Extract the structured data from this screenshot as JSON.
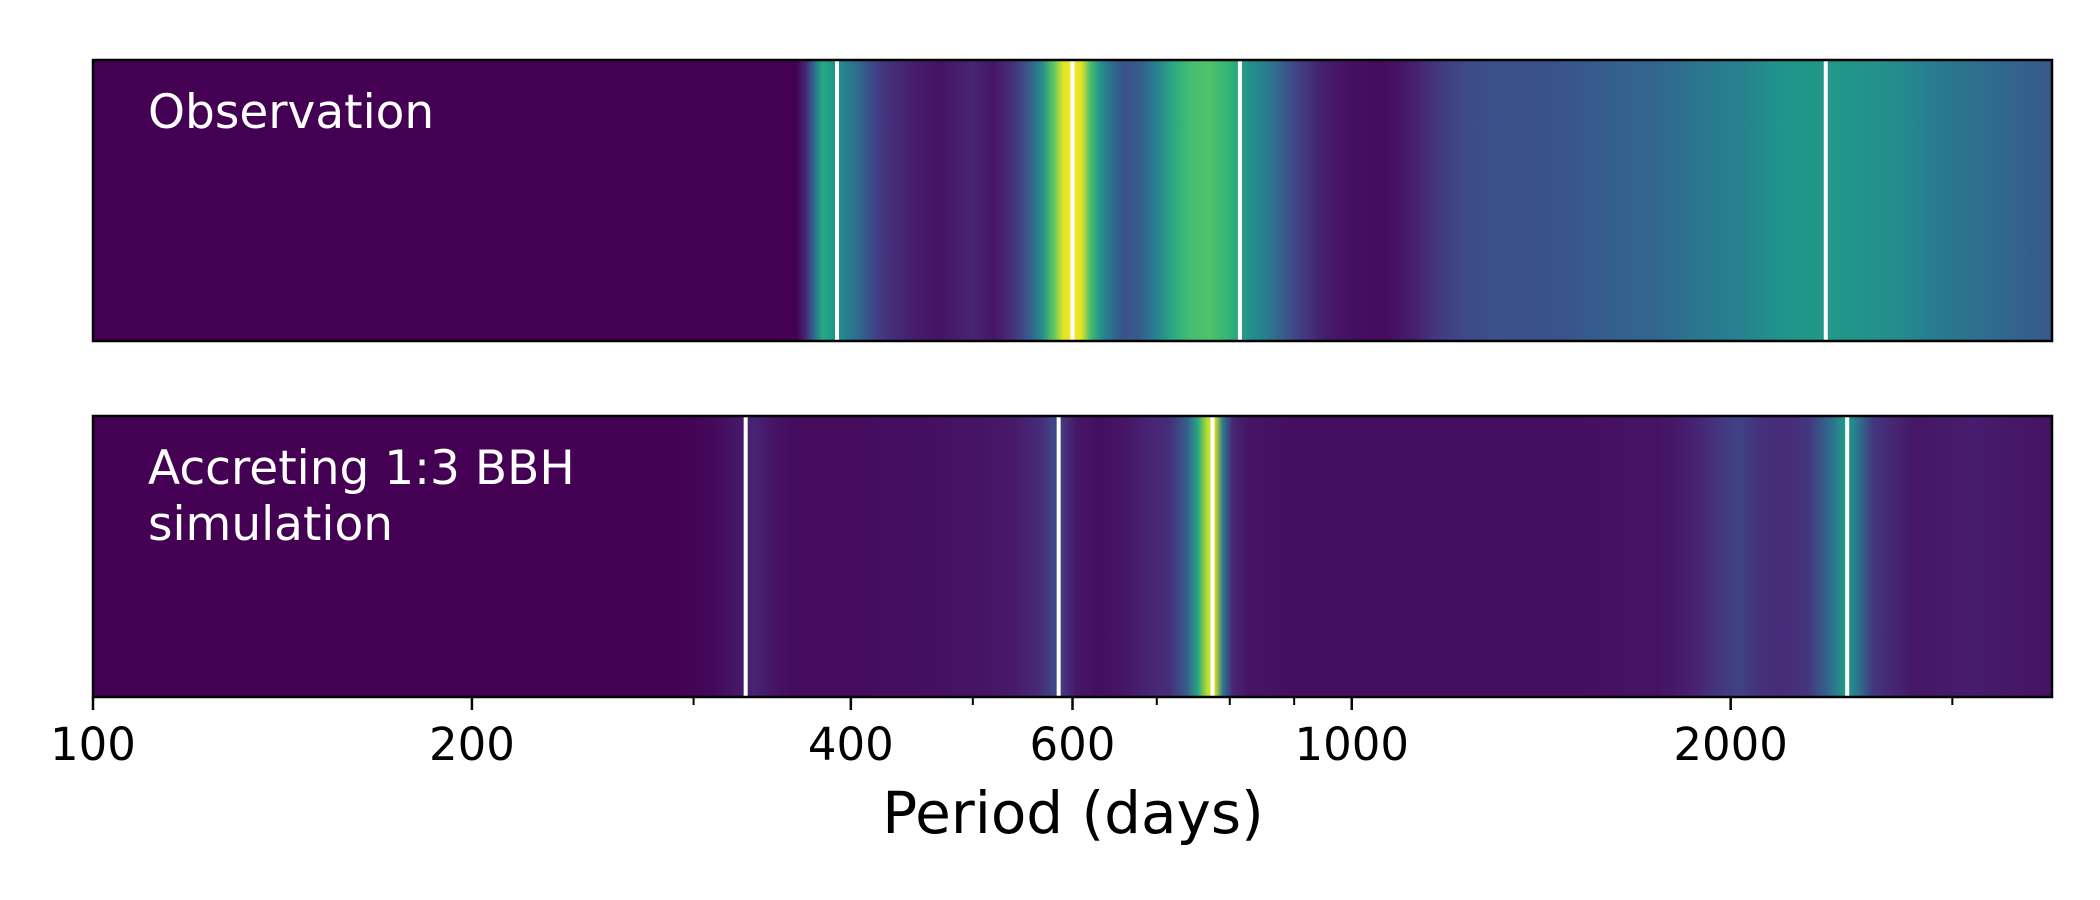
{
  "chart_data": {
    "type": "heatmap",
    "xlabel": "Period (days)",
    "xscale": "log",
    "xlim": [
      100,
      3600
    ],
    "grid": false,
    "colormap": "viridis",
    "colors": {
      "viridis": [
        "#440154",
        "#482878",
        "#3e4989",
        "#31688e",
        "#26828e",
        "#1f9e89",
        "#35b779",
        "#6ece58",
        "#b5de2b",
        "#fde725"
      ],
      "marker_line": "#ffffff",
      "frame": "#000000",
      "background": "#ffffff"
    },
    "major_ticks": [
      {
        "value": 100,
        "label": "100"
      },
      {
        "value": 200,
        "label": "200"
      },
      {
        "value": 400,
        "label": "400"
      },
      {
        "value": 600,
        "label": "600"
      },
      {
        "value": 1000,
        "label": "1000"
      },
      {
        "value": 2000,
        "label": "2000"
      }
    ],
    "minor_ticks": [
      300,
      500,
      700,
      800,
      900,
      3000
    ],
    "panels": [
      {
        "label": "Observation",
        "markers": [
          390,
          600,
          815,
          2380
        ],
        "intensity": [
          [
            100,
            0.0
          ],
          [
            362,
            0.0
          ],
          [
            368,
            0.1
          ],
          [
            372,
            0.25
          ],
          [
            376,
            0.45
          ],
          [
            380,
            0.6
          ],
          [
            385,
            0.55
          ],
          [
            395,
            0.45
          ],
          [
            405,
            0.35
          ],
          [
            418,
            0.2
          ],
          [
            432,
            0.12
          ],
          [
            450,
            0.08
          ],
          [
            470,
            0.05
          ],
          [
            500,
            0.1
          ],
          [
            520,
            0.06
          ],
          [
            540,
            0.15
          ],
          [
            555,
            0.3
          ],
          [
            568,
            0.5
          ],
          [
            580,
            0.75
          ],
          [
            590,
            0.95
          ],
          [
            600,
            1.0
          ],
          [
            610,
            0.95
          ],
          [
            620,
            0.7
          ],
          [
            632,
            0.5
          ],
          [
            645,
            0.35
          ],
          [
            660,
            0.25
          ],
          [
            680,
            0.3
          ],
          [
            700,
            0.45
          ],
          [
            720,
            0.6
          ],
          [
            745,
            0.7
          ],
          [
            770,
            0.72
          ],
          [
            800,
            0.65
          ],
          [
            830,
            0.5
          ],
          [
            860,
            0.4
          ],
          [
            900,
            0.22
          ],
          [
            950,
            0.08
          ],
          [
            1000,
            0.04
          ],
          [
            1060,
            0.03
          ],
          [
            1110,
            0.07
          ],
          [
            1160,
            0.15
          ],
          [
            1220,
            0.22
          ],
          [
            1300,
            0.25
          ],
          [
            1400,
            0.25
          ],
          [
            1500,
            0.27
          ],
          [
            1600,
            0.3
          ],
          [
            1750,
            0.33
          ],
          [
            1900,
            0.4
          ],
          [
            2050,
            0.45
          ],
          [
            2200,
            0.52
          ],
          [
            2400,
            0.53
          ],
          [
            2650,
            0.5
          ],
          [
            2900,
            0.42
          ],
          [
            3200,
            0.35
          ],
          [
            3600,
            0.28
          ]
        ]
      },
      {
        "label": "Accreting 1:3 BBH simulation",
        "label_lines": [
          "Accreting 1:3 BBH",
          "simulation"
        ],
        "markers": [
          330,
          585,
          775,
          2475
        ],
        "intensity": [
          [
            100,
            0.0
          ],
          [
            290,
            0.0
          ],
          [
            310,
            0.02
          ],
          [
            325,
            0.06
          ],
          [
            335,
            0.1
          ],
          [
            345,
            0.06
          ],
          [
            360,
            0.03
          ],
          [
            400,
            0.03
          ],
          [
            450,
            0.04
          ],
          [
            500,
            0.05
          ],
          [
            540,
            0.07
          ],
          [
            565,
            0.12
          ],
          [
            580,
            0.22
          ],
          [
            590,
            0.15
          ],
          [
            605,
            0.06
          ],
          [
            630,
            0.04
          ],
          [
            660,
            0.06
          ],
          [
            690,
            0.1
          ],
          [
            715,
            0.12
          ],
          [
            740,
            0.3
          ],
          [
            755,
            0.6
          ],
          [
            768,
            0.9
          ],
          [
            778,
            0.95
          ],
          [
            790,
            0.4
          ],
          [
            805,
            0.1
          ],
          [
            830,
            0.05
          ],
          [
            900,
            0.04
          ],
          [
            1000,
            0.04
          ],
          [
            1200,
            0.04
          ],
          [
            1500,
            0.04
          ],
          [
            1750,
            0.05
          ],
          [
            1850,
            0.08
          ],
          [
            1950,
            0.15
          ],
          [
            2030,
            0.2
          ],
          [
            2100,
            0.14
          ],
          [
            2200,
            0.12
          ],
          [
            2300,
            0.15
          ],
          [
            2400,
            0.35
          ],
          [
            2470,
            0.55
          ],
          [
            2520,
            0.4
          ],
          [
            2600,
            0.15
          ],
          [
            2800,
            0.06
          ],
          [
            3100,
            0.08
          ],
          [
            3400,
            0.06
          ],
          [
            3600,
            0.05
          ]
        ]
      }
    ]
  }
}
